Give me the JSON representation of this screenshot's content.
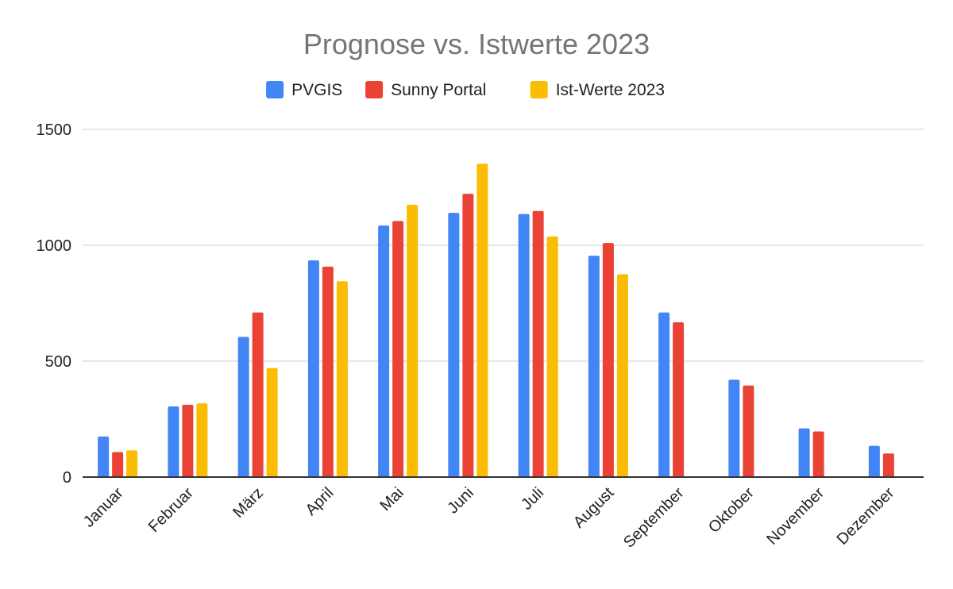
{
  "chart_data": {
    "type": "bar",
    "title": "Prognose vs. Istwerte 2023",
    "categories": [
      "Januar",
      "Februar",
      "März",
      "April",
      "Mai",
      "Juni",
      "Juli",
      "August",
      "September",
      "Oktober",
      "November",
      "Dezember"
    ],
    "series": [
      {
        "name": "PVGIS",
        "color": "#4285f4",
        "values": [
          175,
          305,
          605,
          935,
          1085,
          1140,
          1135,
          955,
          710,
          420,
          210,
          135
        ]
      },
      {
        "name": "Sunny Portal",
        "color": "#ea4335",
        "values": [
          108,
          312,
          710,
          908,
          1105,
          1222,
          1148,
          1010,
          668,
          395,
          197,
          102
        ]
      },
      {
        "name": "Ist-Werte 2023",
        "color": "#fbbc04",
        "values": [
          115,
          318,
          470,
          845,
          1175,
          1352,
          1038,
          875,
          null,
          null,
          null,
          null
        ]
      }
    ],
    "ylim": [
      0,
      1500
    ],
    "yticks": [
      0,
      500,
      1000,
      1500
    ],
    "ytick_labels": [
      "0",
      "500",
      "1000",
      "1500"
    ],
    "grid": true,
    "legend_position": "top"
  }
}
